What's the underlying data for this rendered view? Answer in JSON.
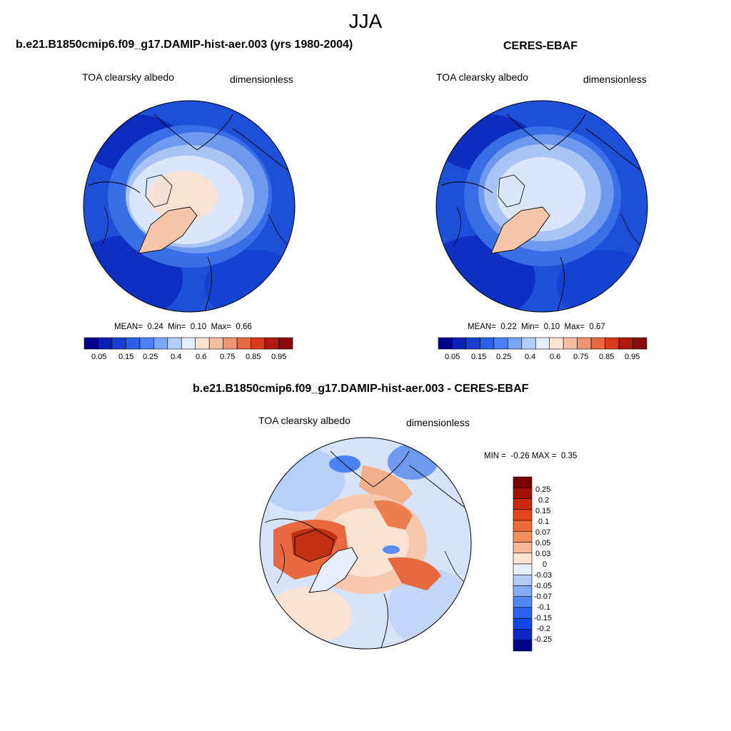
{
  "figure": {
    "season": "JJA",
    "colors": {
      "abs_scale": [
        "#00008b",
        "#0a1fb5",
        "#1a3fd0",
        "#2b5fe6",
        "#4a80f0",
        "#7ba6f5",
        "#b3cdf8",
        "#e6eefc",
        "#fce4d4",
        "#f6bfa3",
        "#ef9470",
        "#e8683f",
        "#d93a1c",
        "#b01a0c",
        "#8a0a0a"
      ],
      "diff_scale": [
        "#00008b",
        "#0a28c8",
        "#1446e6",
        "#2a62f0",
        "#5088f2",
        "#82aaf5",
        "#b4cbf8",
        "#e8eefc",
        "#fde4d2",
        "#f8b898",
        "#f2915f",
        "#ec6a38",
        "#e4461c",
        "#c62a0c",
        "#a01204",
        "#7a0000"
      ]
    },
    "panels": [
      {
        "id": "model",
        "title": "b.e21.B1850cmip6.f09_g17.DAMIP-hist-aer.003 (yrs 1980-2004)",
        "left_label": "TOA clearsky albedo",
        "right_label": "dimensionless",
        "stats": {
          "mean_label": "MEAN=",
          "mean": "0.24",
          "min_label": "Min=",
          "min": "0.10",
          "max_label": "Max=",
          "max": "0.66"
        },
        "colorbar_ticks": [
          "0.05",
          "0.15",
          "0.25",
          "0.4",
          "0.6",
          "0.75",
          "0.85",
          "0.95"
        ]
      },
      {
        "id": "obs",
        "title": "CERES-EBAF",
        "left_label": "TOA clearsky albedo",
        "right_label": "dimensionless",
        "stats": {
          "mean_label": "MEAN=",
          "mean": "0.22",
          "min_label": "Min=",
          "min": "0.10",
          "max_label": "Max=",
          "max": "0.67"
        },
        "colorbar_ticks": [
          "0.05",
          "0.15",
          "0.25",
          "0.4",
          "0.6",
          "0.75",
          "0.85",
          "0.95"
        ]
      },
      {
        "id": "diff",
        "title": "b.e21.B1850cmip6.f09_g17.DAMIP-hist-aer.003 - CERES-EBAF",
        "left_label": "TOA clearsky albedo",
        "right_label": "dimensionless",
        "minmax": {
          "min_label": "MIN =",
          "min": "-0.26",
          "max_label": "MAX =",
          "max": "0.35"
        },
        "colorbar_ticks": [
          "0.25",
          "0.2",
          "0.15",
          "0.1",
          "0.07",
          "0.05",
          "0.03",
          "0",
          "-0.03",
          "-0.05",
          "-0.07",
          "-0.1",
          "-0.15",
          "-0.2",
          "-0.25"
        ]
      }
    ]
  }
}
